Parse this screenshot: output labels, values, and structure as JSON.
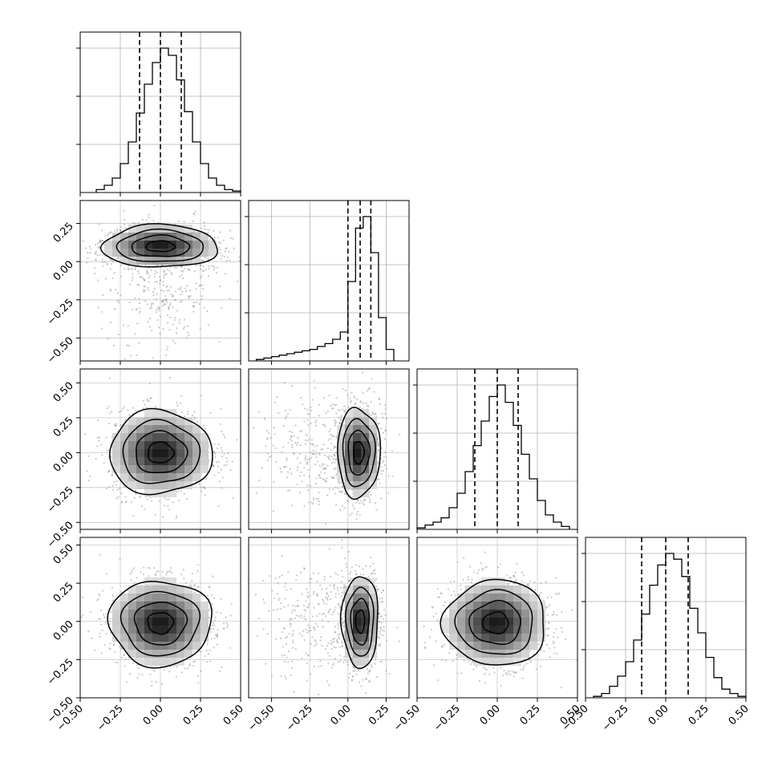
{
  "chart_data": {
    "type": "corner",
    "n_params": 4,
    "grid": true,
    "tick_labels": [
      "−0.50",
      "−0.25",
      "0.00",
      "0.25",
      "0.50"
    ],
    "quantiles": [
      0.16,
      0.5,
      0.84
    ],
    "histograms": [
      {
        "param": 0,
        "range": [
          -0.5,
          0.5
        ],
        "bin_edges": [
          -0.4,
          -0.35,
          -0.3,
          -0.25,
          -0.2,
          -0.15,
          -0.1,
          -0.05,
          0.0,
          0.05,
          0.1,
          0.15,
          0.2,
          0.25,
          0.3,
          0.35,
          0.4,
          0.45,
          0.5
        ],
        "counts": [
          2,
          5,
          10,
          20,
          35,
          55,
          75,
          90,
          100,
          95,
          78,
          56,
          35,
          20,
          10,
          5,
          2,
          1
        ],
        "quantile_values": [
          -0.13,
          0.0,
          0.13
        ]
      },
      {
        "param": 1,
        "range": [
          -0.65,
          0.4
        ],
        "bin_edges": [
          -0.6,
          -0.55,
          -0.5,
          -0.45,
          -0.4,
          -0.35,
          -0.3,
          -0.25,
          -0.2,
          -0.15,
          -0.1,
          -0.05,
          0.0,
          0.05,
          0.1,
          0.15,
          0.2,
          0.25,
          0.3
        ],
        "counts": [
          1,
          2,
          3,
          4,
          5,
          6,
          7,
          8,
          10,
          12,
          15,
          20,
          55,
          92,
          100,
          75,
          30,
          8
        ],
        "quantile_values": [
          0.0,
          0.08,
          0.15
        ]
      },
      {
        "param": 2,
        "range": [
          -0.5,
          0.5
        ],
        "bin_edges": [
          -0.5,
          -0.45,
          -0.4,
          -0.35,
          -0.3,
          -0.25,
          -0.2,
          -0.15,
          -0.1,
          -0.05,
          0.0,
          0.05,
          0.1,
          0.15,
          0.2,
          0.25,
          0.3,
          0.35,
          0.4,
          0.45
        ],
        "counts": [
          1,
          3,
          5,
          8,
          15,
          25,
          40,
          58,
          75,
          92,
          100,
          88,
          72,
          52,
          35,
          20,
          10,
          5,
          2
        ],
        "quantile_values": [
          -0.14,
          0.0,
          0.13
        ]
      },
      {
        "param": 3,
        "range": [
          -0.5,
          0.5
        ],
        "bin_edges": [
          -0.45,
          -0.4,
          -0.35,
          -0.3,
          -0.25,
          -0.2,
          -0.15,
          -0.1,
          -0.05,
          0.0,
          0.05,
          0.1,
          0.15,
          0.2,
          0.25,
          0.3,
          0.35,
          0.4,
          0.45,
          0.5
        ],
        "counts": [
          1,
          3,
          8,
          15,
          25,
          40,
          58,
          78,
          92,
          100,
          96,
          84,
          62,
          45,
          28,
          14,
          6,
          3,
          1
        ],
        "quantile_values": [
          -0.15,
          0.0,
          0.14
        ]
      }
    ],
    "panels_2d": [
      {
        "row": 1,
        "col": 0,
        "mean": [
          0.0,
          0.1
        ],
        "sd": [
          0.18,
          0.07
        ],
        "y_range": [
          -0.65,
          0.4
        ],
        "x_range": [
          -0.5,
          0.5
        ]
      },
      {
        "row": 2,
        "col": 0,
        "mean": [
          0.0,
          0.0
        ],
        "sd": [
          0.16,
          0.15
        ],
        "y_range": [
          -0.55,
          0.6
        ],
        "x_range": [
          -0.5,
          0.5
        ]
      },
      {
        "row": 2,
        "col": 1,
        "mean": [
          0.07,
          0.0
        ],
        "sd": [
          0.07,
          0.16
        ],
        "y_range": [
          -0.55,
          0.6
        ],
        "x_range": [
          -0.65,
          0.4
        ]
      },
      {
        "row": 3,
        "col": 0,
        "mean": [
          0.0,
          -0.01
        ],
        "sd": [
          0.16,
          0.14
        ],
        "y_range": [
          -0.5,
          0.55
        ],
        "x_range": [
          -0.5,
          0.5
        ]
      },
      {
        "row": 3,
        "col": 1,
        "mean": [
          0.08,
          0.0
        ],
        "sd": [
          0.06,
          0.15
        ],
        "y_range": [
          -0.5,
          0.55
        ],
        "x_range": [
          -0.65,
          0.4
        ]
      },
      {
        "row": 3,
        "col": 2,
        "mean": [
          -0.01,
          -0.01
        ],
        "sd": [
          0.16,
          0.14
        ],
        "y_range": [
          -0.5,
          0.55
        ],
        "x_range": [
          -0.5,
          0.5
        ]
      }
    ]
  }
}
